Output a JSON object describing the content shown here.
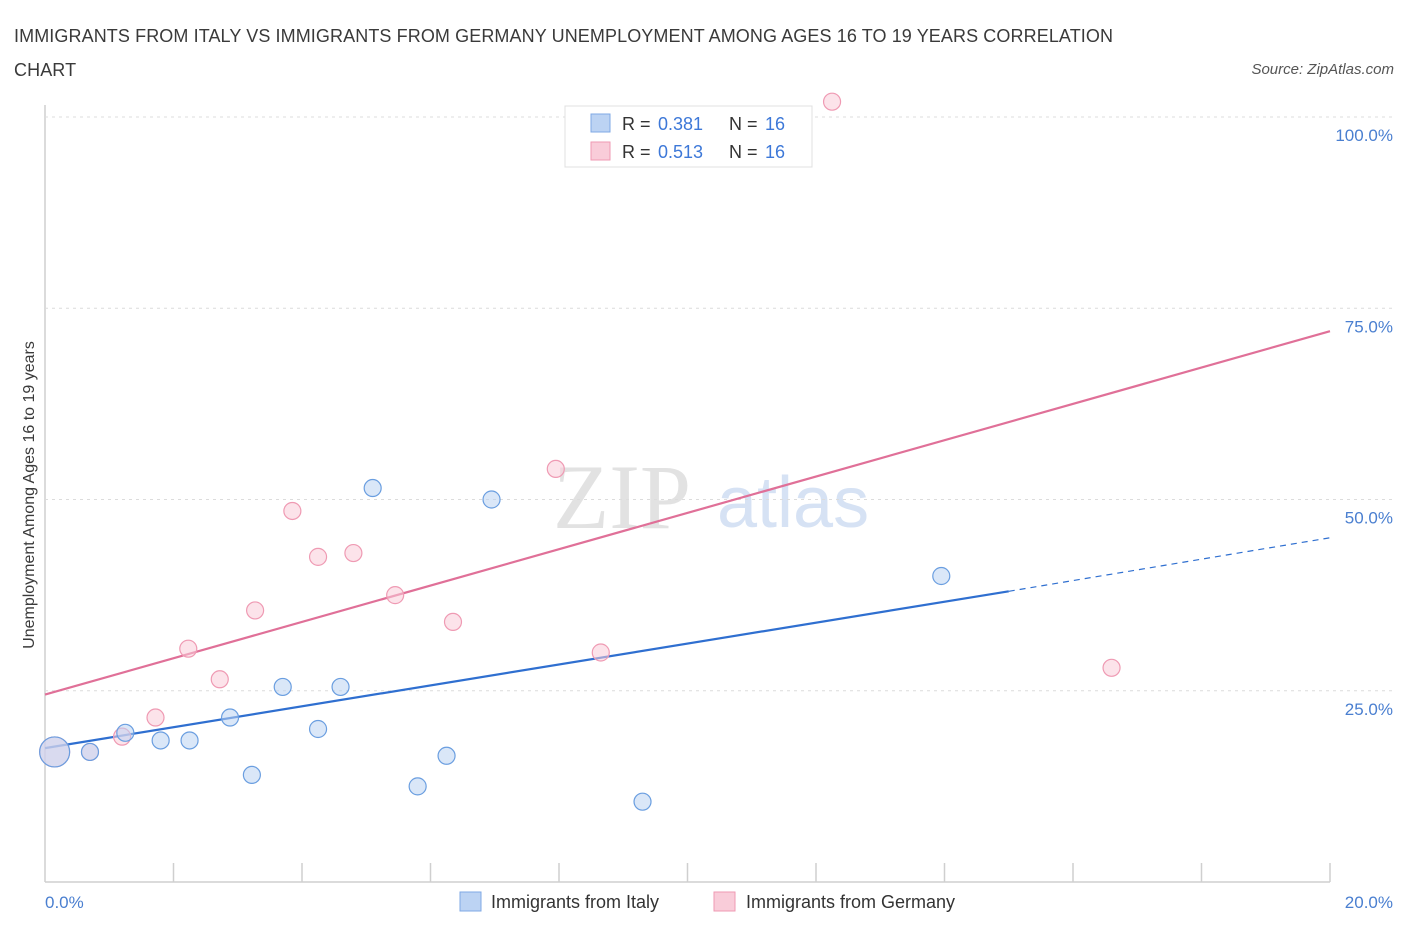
{
  "title": "IMMIGRANTS FROM ITALY VS IMMIGRANTS FROM GERMANY UNEMPLOYMENT AMONG AGES 16 TO 19 YEARS CORRELATION CHART",
  "source": "Source: ZipAtlas.com",
  "watermark": {
    "zip": "ZIP",
    "atlas": "atlas"
  },
  "chart_data": {
    "type": "scatter",
    "xlabel": "",
    "ylabel": "Unemployment Among Ages 16 to 19 years",
    "xlim": [
      0,
      20
    ],
    "ylim": [
      0,
      100
    ],
    "x_tick_labels": [
      "0.0%",
      "20.0%"
    ],
    "y_ticks": [
      25,
      50,
      75,
      100
    ],
    "y_tick_labels": [
      "25.0%",
      "50.0%",
      "75.0%",
      "100.0%"
    ],
    "colors": {
      "italy": "#6a9ee0",
      "germany": "#ef9ab3",
      "italy_line": "#2f6fd0",
      "germany_line": "#e07098"
    },
    "legend": {
      "rows": [
        {
          "r_label": "R = ",
          "r_value": "0.381",
          "n_label": "N = ",
          "n_value": "16"
        },
        {
          "r_label": "R = ",
          "r_value": "0.513",
          "n_label": "N = ",
          "n_value": "16"
        }
      ]
    },
    "series": [
      {
        "name": "Immigrants from Italy",
        "points": [
          {
            "x": 0.15,
            "y": 17.0,
            "big": true
          },
          {
            "x": 0.7,
            "y": 17.0
          },
          {
            "x": 1.25,
            "y": 19.5
          },
          {
            "x": 1.8,
            "y": 18.5
          },
          {
            "x": 2.25,
            "y": 18.5
          },
          {
            "x": 2.88,
            "y": 21.5
          },
          {
            "x": 3.22,
            "y": 14.0
          },
          {
            "x": 3.7,
            "y": 25.5
          },
          {
            "x": 4.25,
            "y": 20.0
          },
          {
            "x": 4.6,
            "y": 25.5
          },
          {
            "x": 5.1,
            "y": 51.5
          },
          {
            "x": 5.8,
            "y": 12.5
          },
          {
            "x": 6.25,
            "y": 16.5
          },
          {
            "x": 6.95,
            "y": 50.0
          },
          {
            "x": 9.3,
            "y": 10.5
          },
          {
            "x": 13.95,
            "y": 40.0
          }
        ],
        "trend": {
          "x0": 0,
          "y0": 17.5,
          "x1": 15.0,
          "y1": 38.0,
          "dash_x1": 20.0,
          "dash_y1": 45.0
        }
      },
      {
        "name": "Immigrants from Germany",
        "points": [
          {
            "x": 0.15,
            "y": 17.0,
            "big": true
          },
          {
            "x": 0.7,
            "y": 17.0
          },
          {
            "x": 1.2,
            "y": 19.0
          },
          {
            "x": 1.72,
            "y": 21.5
          },
          {
            "x": 2.23,
            "y": 30.5
          },
          {
            "x": 2.72,
            "y": 26.5
          },
          {
            "x": 3.27,
            "y": 35.5
          },
          {
            "x": 3.85,
            "y": 48.5
          },
          {
            "x": 4.25,
            "y": 42.5
          },
          {
            "x": 4.8,
            "y": 43.0
          },
          {
            "x": 5.45,
            "y": 37.5
          },
          {
            "x": 6.35,
            "y": 34.0
          },
          {
            "x": 7.95,
            "y": 54.0
          },
          {
            "x": 8.65,
            "y": 30.0
          },
          {
            "x": 12.25,
            "y": 102.0
          },
          {
            "x": 16.6,
            "y": 28.0
          }
        ],
        "trend": {
          "x0": 0,
          "y0": 24.5,
          "x1": 20.0,
          "y1": 72.0
        }
      }
    ]
  }
}
